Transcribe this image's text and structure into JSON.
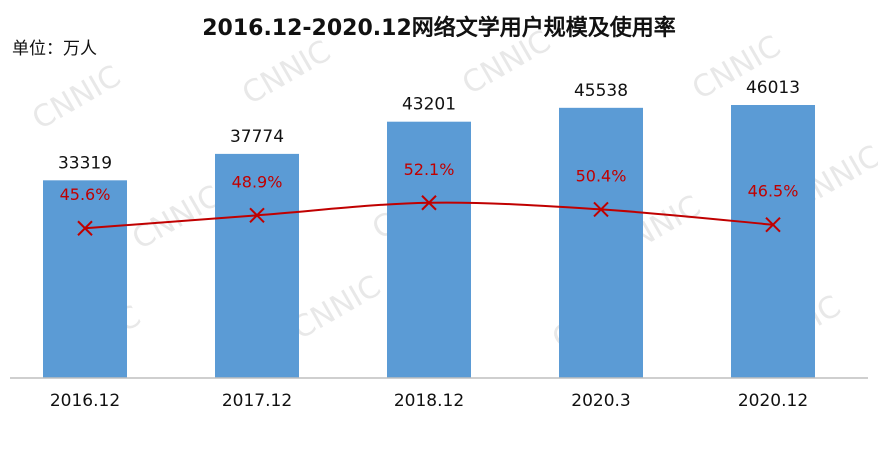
{
  "chart_data": {
    "type": "bar",
    "title": "2016.12-2020.12网络文学用户规模及使用率",
    "unit_label": "单位：万人",
    "categories": [
      "2016.12",
      "2017.12",
      "2018.12",
      "2020.3",
      "2020.12"
    ],
    "series": [
      {
        "type": "bar",
        "values": [
          33319,
          37774,
          43201,
          45538,
          46013
        ],
        "labels": [
          "33319",
          "37774",
          "43201",
          "45538",
          "46013"
        ],
        "color": "#5b9bd5"
      },
      {
        "type": "line",
        "values": [
          45.6,
          48.9,
          52.1,
          50.4,
          46.5
        ],
        "labels": [
          "45.6%",
          "48.9%",
          "52.1%",
          "50.4%",
          "46.5%"
        ],
        "color": "#c00000",
        "marker": "x"
      }
    ],
    "ylim": [
      0,
      50000
    ],
    "y2lim": [
      0,
      100
    ],
    "grid": false,
    "watermark": "CNNIC"
  }
}
